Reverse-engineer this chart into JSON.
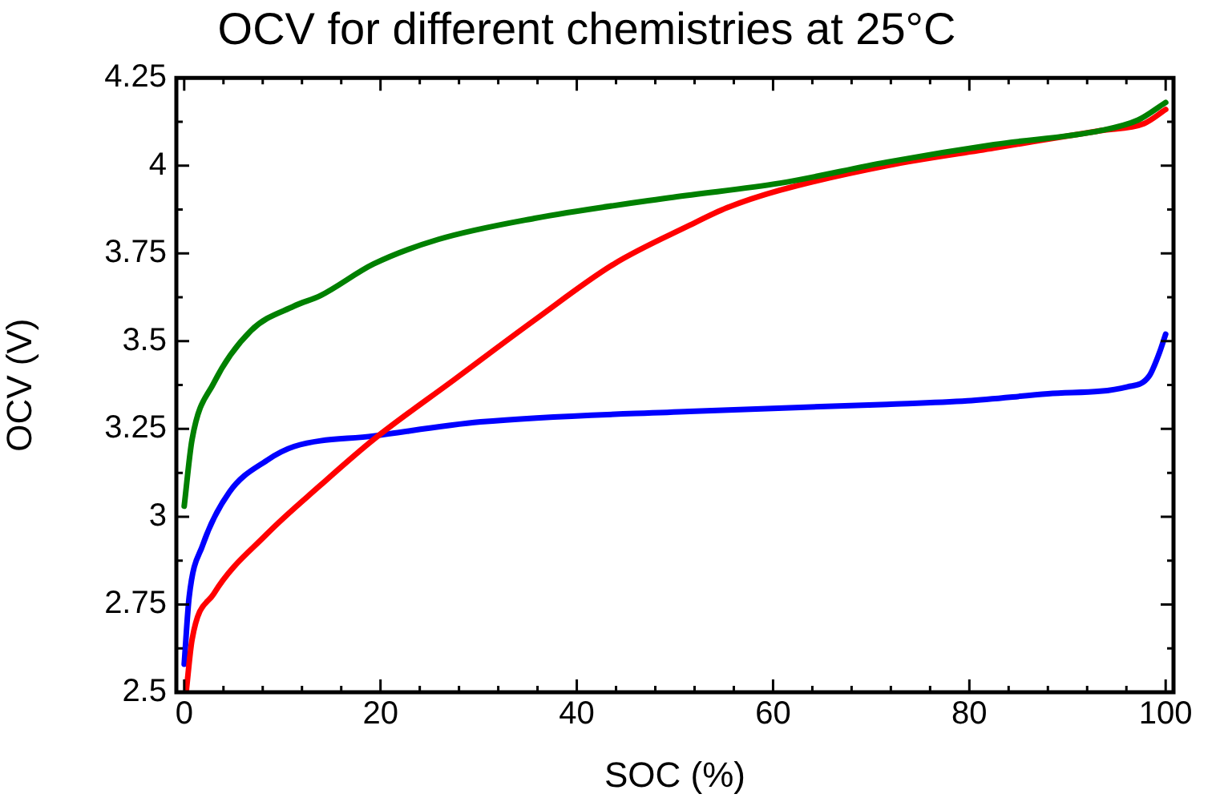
{
  "chart_data": {
    "type": "line",
    "title": "OCV for different chemistries at 25°C",
    "xlabel": "SOC (%)",
    "ylabel": "OCV (V)",
    "xlim": [
      -0.8,
      100.8
    ],
    "ylim": [
      2.5,
      4.25
    ],
    "xticks": [
      0,
      {
        "value": 4,
        "label": null
      },
      {
        "value": 8,
        "label": null
      },
      {
        "value": 12,
        "label": null
      },
      {
        "value": 16,
        "label": null
      },
      20,
      {
        "value": 24,
        "label": null
      },
      {
        "value": 28,
        "label": null
      },
      {
        "value": 32,
        "label": null
      },
      {
        "value": 36,
        "label": null
      },
      40,
      {
        "value": 44,
        "label": null
      },
      {
        "value": 48,
        "label": null
      },
      {
        "value": 52,
        "label": null
      },
      {
        "value": 56,
        "label": null
      },
      60,
      {
        "value": 64,
        "label": null
      },
      {
        "value": 68,
        "label": null
      },
      {
        "value": 72,
        "label": null
      },
      {
        "value": 76,
        "label": null
      },
      80,
      {
        "value": 84,
        "label": null
      },
      {
        "value": 88,
        "label": null
      },
      {
        "value": 92,
        "label": null
      },
      {
        "value": 96,
        "label": null
      },
      100
    ],
    "yticks": [
      2.5,
      {
        "value": 2.625,
        "label": null
      },
      2.75,
      {
        "value": 2.875,
        "label": null
      },
      3,
      {
        "value": 3.125,
        "label": null
      },
      3.25,
      {
        "value": 3.375,
        "label": null
      },
      3.5,
      {
        "value": 3.625,
        "label": null
      },
      3.75,
      {
        "value": 3.875,
        "label": null
      },
      4,
      {
        "value": 4.125,
        "label": null
      },
      4.25
    ],
    "grid": false,
    "legend": false,
    "marker": "none",
    "line_style": "solid",
    "series": [
      {
        "color": "#008000",
        "x": [
          0,
          0.8,
          3.0,
          6.8,
          11.2,
          13.9,
          19.3,
          25.9,
          35.7,
          49.8,
          60.7,
          71.6,
          82.5,
          93.4,
          97.2,
          100
        ],
        "values": [
          3.03,
          3.22,
          3.38,
          3.53,
          3.6,
          3.63,
          3.72,
          3.79,
          3.85,
          3.91,
          3.95,
          4.01,
          4.06,
          4.1,
          4.13,
          4.18
        ]
      },
      {
        "color": "#ff0000",
        "x": [
          0.2,
          0.8,
          3.0,
          8.4,
          13.9,
          19.3,
          27.5,
          35.7,
          43.8,
          51.5,
          55.3,
          60.7,
          71.6,
          82.5,
          93.4,
          97.8,
          100
        ],
        "values": [
          2.5,
          2.65,
          2.78,
          2.95,
          3.09,
          3.22,
          3.39,
          3.56,
          3.72,
          3.83,
          3.88,
          3.93,
          4.0,
          4.05,
          4.1,
          4.12,
          4.16
        ]
      },
      {
        "color": "#0000ff",
        "x": [
          0,
          0.5,
          1.9,
          4.6,
          8.4,
          11.2,
          19.3,
          30.2,
          51.5,
          71.6,
          79.8,
          88.0,
          96.1,
          98.3,
          99.4,
          100
        ],
        "values": [
          2.58,
          2.77,
          2.92,
          3.07,
          3.16,
          3.2,
          3.23,
          3.27,
          3.3,
          3.32,
          3.33,
          3.35,
          3.37,
          3.4,
          3.47,
          3.52
        ]
      }
    ]
  }
}
